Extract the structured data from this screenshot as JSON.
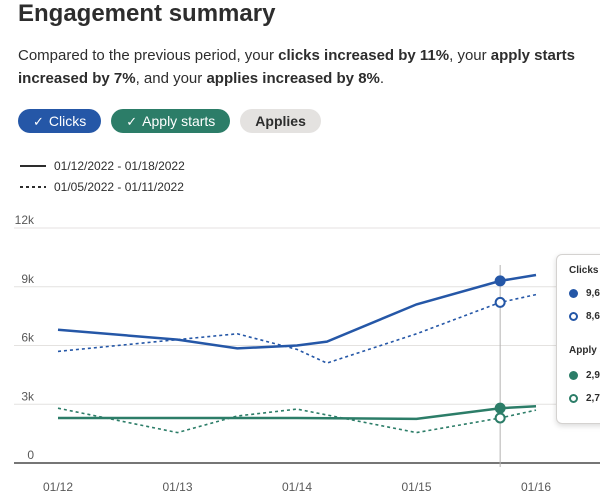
{
  "header": {
    "title": "Engagement summary",
    "summary": {
      "intro": "Compared to the previous period, your ",
      "clicks_text": "clicks increased by 11%",
      "mid1": ", your ",
      "apply_text": "apply starts increased by 7%",
      "mid2": ", and your ",
      "applies_text": "applies increased by 8%",
      "end": "."
    }
  },
  "filters": {
    "clicks_label": "Clicks",
    "apply_starts_label": "Apply starts",
    "applies_label": "Applies",
    "check_glyph": "✓"
  },
  "legend": {
    "current_period": "01/12/2022 - 01/18/2022",
    "previous_period": "01/05/2022 - 01/11/2022"
  },
  "colors": {
    "clicks": "#2557a7",
    "apply_starts": "#2c7d68",
    "grid": "#e4e2e0",
    "axis": "#767676"
  },
  "chart_data": {
    "type": "line",
    "x": [
      "01/12",
      "01/13",
      "01/14",
      "01/15",
      "01/16"
    ],
    "ylim": [
      0,
      12000
    ],
    "yticks": [
      0,
      3000,
      6000,
      9000,
      12000
    ],
    "ytick_labels": [
      "0",
      "3k",
      "6k",
      "9k",
      "12k"
    ],
    "grid": true,
    "series": [
      {
        "name": "Clicks",
        "period": "01/12/2022 - 01/18/2022",
        "style": "solid",
        "color": "#2557a7",
        "x": [
          0,
          1,
          1.5,
          2,
          2.25,
          3,
          3.7,
          4
        ],
        "y": [
          6800,
          6300,
          5850,
          6000,
          6200,
          8100,
          9300,
          9600
        ]
      },
      {
        "name": "Clicks",
        "period": "01/05/2022 - 01/11/2022",
        "style": "dashed",
        "color": "#2557a7",
        "x": [
          0,
          1,
          1.5,
          2,
          2.25,
          3,
          3.7,
          4
        ],
        "y": [
          5700,
          6300,
          6600,
          5800,
          5100,
          6600,
          8200,
          8600
        ]
      },
      {
        "name": "Apply starts",
        "period": "01/12/2022 - 01/18/2022",
        "style": "solid",
        "color": "#2c7d68",
        "x": [
          0,
          1,
          2,
          3,
          3.7,
          4
        ],
        "y": [
          2300,
          2300,
          2300,
          2250,
          2800,
          2900
        ]
      },
      {
        "name": "Apply starts",
        "period": "01/05/2022 - 01/11/2022",
        "style": "dashed",
        "color": "#2c7d68",
        "x": [
          0,
          1,
          1.5,
          2,
          3,
          3.7,
          4
        ],
        "y": [
          2800,
          1550,
          2400,
          2750,
          1550,
          2300,
          2700
        ]
      }
    ],
    "hover_x": 3.7
  },
  "tooltip": {
    "clicks_heading": "Clicks",
    "clicks_current": "9,6",
    "clicks_previous": "8,6",
    "apply_heading": "Apply s",
    "apply_current": "2,9",
    "apply_previous": "2,7"
  }
}
